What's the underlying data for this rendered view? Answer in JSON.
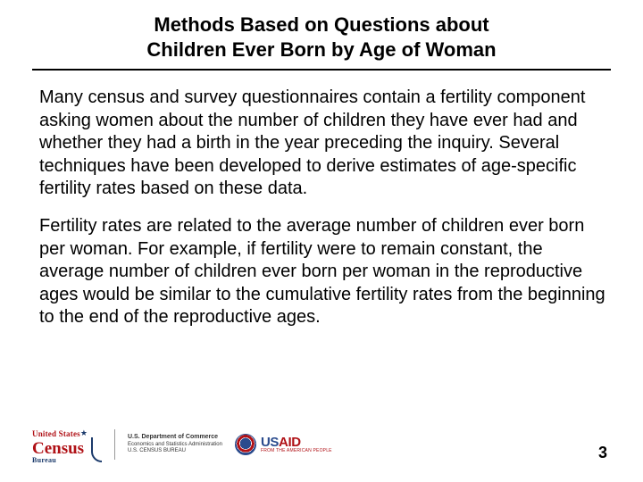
{
  "title": {
    "line1": "Methods Based on Questions about",
    "line2": "Children Ever Born by Age of Woman"
  },
  "paragraphs": {
    "p1": "Many census and survey questionnaires contain a fertility component asking women about the number of children they have ever had and whether they had a birth in the year preceding the inquiry.  Several techniques have been developed to derive estimates of age‑specific fertility rates based on these data.",
    "p2": "Fertility rates are related to the average number of children ever born  per woman.  For example, if fertility were to remain constant, the average number of children ever born per woman in the reproductive ages would be similar to the cumulative fertility rates from the beginning to the end of the  reproductive ages."
  },
  "footer": {
    "census": {
      "top": "United States",
      "main": "Census",
      "bureau": "Bureau"
    },
    "dept": {
      "l1": "U.S. Department of Commerce",
      "l2": "Economics and Statistics Administration",
      "l3": "U.S. CENSUS BUREAU"
    },
    "usaid": {
      "main_prefix": "US",
      "main_suffix": "AID",
      "tag": "FROM THE AMERICAN PEOPLE"
    }
  },
  "page_number": "3",
  "colors": {
    "rule": "#000000",
    "census_red": "#b01116",
    "census_blue": "#1b3a6b",
    "usaid_blue": "#2a4b8d"
  }
}
